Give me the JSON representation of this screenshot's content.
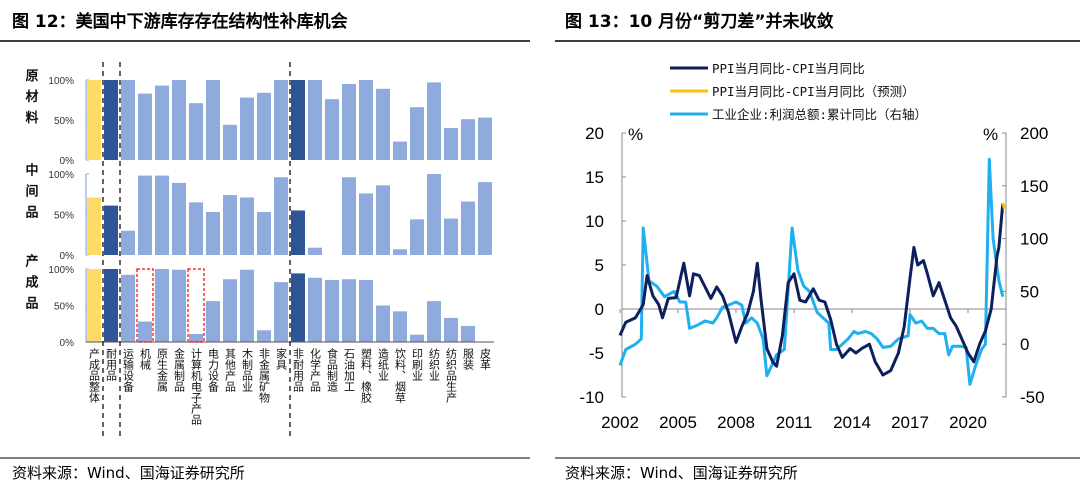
{
  "left": {
    "title": "图 12：美国中下游库存存在结构性补库机会",
    "source": "资料来源：Wind、国海证券研究所"
  },
  "right": {
    "title": "图 13：10 月份“剪刀差”并未收敛",
    "source": "资料来源：Wind、国海证券研究所"
  },
  "colors": {
    "overall": "#FFD966",
    "group": "#2F5597",
    "item": "#8FAADC",
    "highlight": "#FF0000",
    "gap": "#0D1F5C",
    "gap_forecast": "#FFC000",
    "profit": "#1FB0EE"
  },
  "chart_data": [
    {
      "type": "bar",
      "title": "图 12：美国中下游库存存在结构性补库机会",
      "categories": [
        "产成品整体",
        "耐用品",
        "运输设备",
        "机械",
        "原生金属",
        "金属制品",
        "计算机电子产品",
        "电力设备",
        "其他产品",
        "木制品业",
        "非金属矿物",
        "家具",
        "非耐用品",
        "化学产品",
        "食品制造",
        "石油加工",
        "塑料、橡胶",
        "造纸业",
        "饮料、烟草",
        "印刷业",
        "纺织业",
        "纺织品生产",
        "服装",
        "皮革"
      ],
      "category_kind": [
        "overall",
        "group",
        "item",
        "item",
        "item",
        "item",
        "item",
        "item",
        "item",
        "item",
        "item",
        "item",
        "group",
        "item",
        "item",
        "item",
        "item",
        "item",
        "item",
        "item",
        "item",
        "item",
        "item",
        "item"
      ],
      "highlighted": [
        "机械",
        "计算机电子产品"
      ],
      "yticks": [
        "0%",
        "50%",
        "100%"
      ],
      "ylim": [
        0,
        100
      ],
      "panels": [
        {
          "name": "原材料",
          "values": [
            100,
            100,
            100,
            83,
            93,
            100,
            71,
            100,
            44,
            78,
            84,
            100,
            100,
            100,
            76,
            95,
            100,
            89,
            23,
            66,
            97,
            40,
            51,
            53
          ]
        },
        {
          "name": "中间品",
          "values": [
            71,
            61,
            30,
            98,
            98,
            89,
            65,
            53,
            74,
            71,
            53,
            96,
            55,
            9,
            0,
            96,
            76,
            86,
            7,
            44,
            100,
            45,
            66,
            90
          ]
        },
        {
          "name": "产成品",
          "values": [
            100,
            100,
            92,
            28,
            100,
            99,
            11,
            56,
            86,
            99,
            16,
            82,
            94,
            88,
            85,
            86,
            85,
            50,
            42,
            10,
            56,
            33,
            22,
            0
          ]
        }
      ]
    },
    {
      "type": "line",
      "title": "图 13：10 月份“剪刀差”并未收敛",
      "xticks": [
        "2002",
        "2005",
        "2008",
        "2011",
        "2014",
        "2017",
        "2020"
      ],
      "xlim": [
        2002,
        2021.9
      ],
      "ylim_left": [
        -10,
        20
      ],
      "yticks_left": [
        "-10",
        "-5",
        "0",
        "5",
        "10",
        "15",
        "20"
      ],
      "ylim_right": [
        -50,
        200
      ],
      "yticks_right": [
        "-50",
        "0",
        "50",
        "100",
        "150",
        "200"
      ],
      "unit_left": "%",
      "unit_right": "%",
      "legend_position": "top",
      "series": [
        {
          "name": "PPI当月同比-CPI当月同比",
          "axis": "left",
          "points": [
            [
              2002.0,
              -3
            ],
            [
              2002.3,
              -1.5
            ],
            [
              2002.8,
              -1
            ],
            [
              2003.2,
              0.5
            ],
            [
              2003.4,
              3.8
            ],
            [
              2003.7,
              1.5
            ],
            [
              2004.0,
              0.5
            ],
            [
              2004.2,
              -1
            ],
            [
              2004.5,
              1.2
            ],
            [
              2004.9,
              1.3
            ],
            [
              2005.3,
              5.2
            ],
            [
              2005.6,
              1.5
            ],
            [
              2005.8,
              4
            ],
            [
              2006.1,
              3.8
            ],
            [
              2006.4,
              2.5
            ],
            [
              2006.7,
              1.2
            ],
            [
              2007.0,
              2.5
            ],
            [
              2007.3,
              1.5
            ],
            [
              2007.6,
              -0.3
            ],
            [
              2008.0,
              -3.8
            ],
            [
              2008.3,
              -2
            ],
            [
              2008.6,
              -0.5
            ],
            [
              2008.9,
              2
            ],
            [
              2009.1,
              5.2
            ],
            [
              2009.3,
              1
            ],
            [
              2009.6,
              -4.5
            ],
            [
              2009.9,
              -6
            ],
            [
              2010.1,
              -6.5
            ],
            [
              2010.4,
              -3
            ],
            [
              2010.7,
              3
            ],
            [
              2011.0,
              4
            ],
            [
              2011.3,
              1
            ],
            [
              2011.6,
              0.8
            ],
            [
              2012.0,
              2.3
            ],
            [
              2012.3,
              1
            ],
            [
              2012.6,
              0.8
            ],
            [
              2012.9,
              -1.2
            ],
            [
              2013.2,
              -4
            ],
            [
              2013.5,
              -5.5
            ],
            [
              2013.9,
              -4.5
            ],
            [
              2014.2,
              -5
            ],
            [
              2014.5,
              -4.5
            ],
            [
              2014.9,
              -4
            ],
            [
              2015.2,
              -6
            ],
            [
              2015.6,
              -7.5
            ],
            [
              2016.0,
              -7
            ],
            [
              2016.4,
              -5
            ],
            [
              2016.7,
              -2
            ],
            [
              2017.0,
              3.5
            ],
            [
              2017.2,
              7
            ],
            [
              2017.4,
              5
            ],
            [
              2017.7,
              5.5
            ],
            [
              2017.9,
              4
            ],
            [
              2018.2,
              1.5
            ],
            [
              2018.5,
              3
            ],
            [
              2018.8,
              1
            ],
            [
              2019.1,
              -1
            ],
            [
              2019.4,
              -2
            ],
            [
              2019.7,
              -3.5
            ],
            [
              2020.0,
              -5
            ],
            [
              2020.3,
              -6
            ],
            [
              2020.6,
              -4
            ],
            [
              2020.9,
              -2.5
            ],
            [
              2021.2,
              0
            ],
            [
              2021.5,
              6
            ],
            [
              2021.6,
              7
            ],
            [
              2021.8,
              12
            ]
          ]
        },
        {
          "name": "PPI当月同比-CPI当月同比（预测）",
          "axis": "left",
          "points": [
            [
              2021.8,
              12
            ],
            [
              2021.9,
              11.4
            ]
          ]
        },
        {
          "name": "工业企业:利润总额:累计同比（右轴）",
          "axis": "right",
          "points": [
            [
              2002.0,
              -20
            ],
            [
              2002.3,
              -5
            ],
            [
              2002.8,
              0
            ],
            [
              2003.1,
              5
            ],
            [
              2003.2,
              110
            ],
            [
              2003.5,
              60
            ],
            [
              2003.9,
              55
            ],
            [
              2004.3,
              45
            ],
            [
              2004.8,
              50
            ],
            [
              2005.1,
              40
            ],
            [
              2005.4,
              40
            ],
            [
              2005.6,
              15
            ],
            [
              2006.0,
              18
            ],
            [
              2006.4,
              22
            ],
            [
              2006.8,
              20
            ],
            [
              2007.0,
              25
            ],
            [
              2007.3,
              35
            ],
            [
              2007.6,
              37
            ],
            [
              2008.0,
              40
            ],
            [
              2008.3,
              37
            ],
            [
              2008.5,
              20
            ],
            [
              2008.8,
              25
            ],
            [
              2009.1,
              20
            ],
            [
              2009.4,
              5
            ],
            [
              2009.6,
              -30
            ],
            [
              2010.1,
              -10
            ],
            [
              2010.5,
              -5
            ],
            [
              2010.9,
              110
            ],
            [
              2011.2,
              70
            ],
            [
              2011.5,
              55
            ],
            [
              2011.8,
              50
            ],
            [
              2012.2,
              30
            ],
            [
              2012.5,
              25
            ],
            [
              2012.8,
              20
            ],
            [
              2012.9,
              -5
            ],
            [
              2013.2,
              -5
            ],
            [
              2013.5,
              0
            ],
            [
              2013.8,
              5
            ],
            [
              2014.1,
              12
            ],
            [
              2014.3,
              10
            ],
            [
              2014.7,
              12
            ],
            [
              2015.0,
              10
            ],
            [
              2015.3,
              5
            ],
            [
              2015.6,
              -3
            ],
            [
              2016.0,
              -2
            ],
            [
              2016.4,
              5
            ],
            [
              2016.9,
              8
            ],
            [
              2017.0,
              28
            ],
            [
              2017.3,
              20
            ],
            [
              2017.6,
              22
            ],
            [
              2017.9,
              15
            ],
            [
              2018.2,
              15
            ],
            [
              2018.5,
              10
            ],
            [
              2018.8,
              10
            ],
            [
              2019.0,
              -10
            ],
            [
              2019.2,
              -2
            ],
            [
              2019.6,
              -2
            ],
            [
              2019.9,
              -3
            ],
            [
              2020.1,
              -38
            ],
            [
              2020.4,
              -20
            ],
            [
              2020.7,
              -5
            ],
            [
              2020.9,
              0
            ],
            [
              2021.1,
              175
            ],
            [
              2021.3,
              100
            ],
            [
              2021.6,
              60
            ],
            [
              2021.8,
              45
            ]
          ]
        }
      ]
    }
  ]
}
